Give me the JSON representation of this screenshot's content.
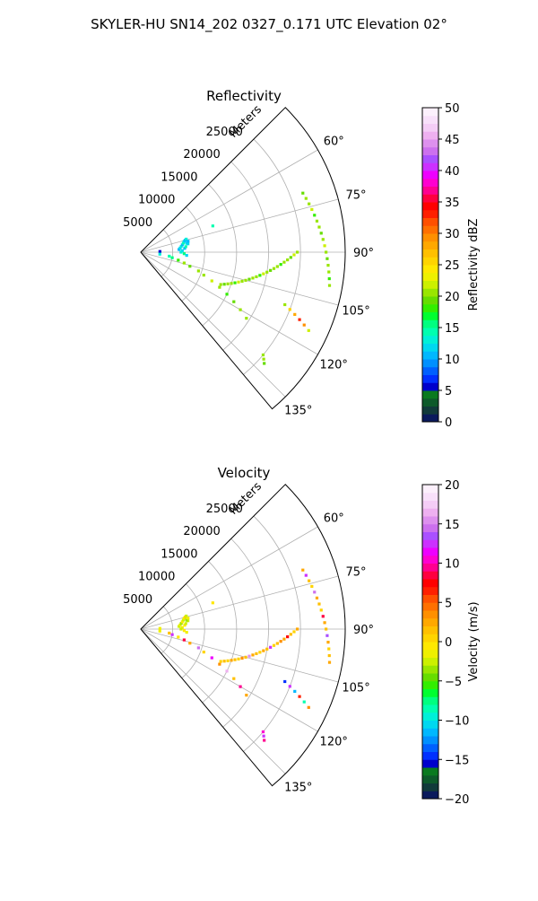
{
  "figure": {
    "title": "SKYLER-HU  SN14_202  0327_0.171 UTC Elevation 02°"
  },
  "chart_data": [
    {
      "type": "scatter",
      "projection": "polar-sector",
      "title": "Reflectivity",
      "radial_label": "Meters",
      "radial_range": [
        0,
        32000
      ],
      "radial_ticks": [
        5000,
        10000,
        15000,
        20000,
        25000
      ],
      "azimuth_range_deg": [
        45,
        140
      ],
      "azimuth_ticks_deg": [
        60,
        75,
        90,
        105,
        120,
        135
      ],
      "azimuth_tick_labels": [
        "60°",
        "75°",
        "90°",
        "105°",
        "120°",
        "135°"
      ],
      "grid": true,
      "colorbar": {
        "label": "Reflectivity dBZ",
        "range": [
          0,
          50
        ],
        "ticks": [
          "0",
          "5",
          "10",
          "15",
          "20",
          "25",
          "30",
          "35",
          "40",
          "45",
          "50"
        ],
        "colors": [
          "#0a1a5c",
          "#113a3a",
          "#0d5a2a",
          "#0a7a20",
          "#0000cc",
          "#0030ff",
          "#0060ff",
          "#0090ff",
          "#00b8ff",
          "#00d8f0",
          "#00f0d8",
          "#00ffb0",
          "#00ff80",
          "#00ff30",
          "#33ee00",
          "#66dd00",
          "#99e600",
          "#ccf000",
          "#eef000",
          "#ffe800",
          "#ffd400",
          "#ffc000",
          "#ffa800",
          "#ff9000",
          "#ff7000",
          "#ff5000",
          "#ff2000",
          "#ff0000",
          "#ff0040",
          "#ff0090",
          "#ff00d0",
          "#ee00ff",
          "#cc30ff",
          "#aa50ff",
          "#cc70ee",
          "#dd90ee",
          "#eeb0f0",
          "#f4cdf6",
          "#f8e0fa",
          "#fcf0fc"
        ]
      },
      "series": [
        {
          "az": [
            88,
            80,
            70
          ],
          "range": [
            3000,
            7500,
            12000
          ],
          "value": [
            6,
            12,
            14
          ]
        },
        {
          "az": [
            86,
            84,
            82,
            80,
            78,
            76,
            75,
            74,
            88,
            85,
            83,
            79,
            77,
            90,
            92,
            94
          ],
          "range": [
            6000,
            6200,
            6400,
            6600,
            6800,
            7000,
            7200,
            7400,
            6500,
            6900,
            7100,
            7300,
            7600,
            6300,
            6800,
            7200
          ],
          "value": [
            11,
            12,
            13,
            10,
            14,
            12,
            11,
            13,
            12,
            10,
            14,
            12,
            11,
            13,
            15,
            12
          ]
        },
        {
          "az": [
            96,
            98,
            100,
            102,
            104,
            106,
            108,
            110,
            112,
            114,
            116,
            118,
            120,
            122
          ],
          "range": [
            3000,
            4500,
            5000,
            6000,
            7000,
            8000,
            9500,
            10500,
            12000,
            13500,
            15000,
            16500,
            18000,
            19500
          ],
          "value": [
            13,
            14,
            16,
            18,
            20,
            19,
            21,
            20,
            22,
            20,
            18,
            19,
            21,
            20
          ]
        },
        {
          "az": [
            112,
            111,
            110,
            109,
            108,
            107,
            106,
            105,
            104,
            103,
            102,
            101,
            100,
            99,
            98,
            97,
            96,
            95,
            94,
            93,
            92,
            91,
            90
          ],
          "range": [
            13500,
            14000,
            14500,
            15000,
            15500,
            16000,
            16500,
            17000,
            17500,
            18000,
            18500,
            19000,
            19500,
            20000,
            20500,
            21000,
            21500,
            22000,
            22500,
            23000,
            23500,
            24000,
            24500
          ],
          "value": [
            20,
            19,
            21,
            20,
            18,
            22,
            21,
            20,
            19,
            21,
            20,
            18,
            22,
            20,
            19,
            21,
            20,
            18,
            21,
            20,
            19,
            22,
            20
          ]
        },
        {
          "az": [
            110,
            111,
            112,
            113,
            114,
            115
          ],
          "range": [
            24000,
            25000,
            26000,
            27000,
            28000,
            29000
          ],
          "value": [
            20,
            25,
            28,
            33,
            29,
            22
          ]
        },
        {
          "az": [
            70,
            72,
            74,
            76,
            78,
            80,
            82,
            84,
            86,
            88,
            90,
            92,
            94,
            96,
            98,
            100
          ],
          "range": [
            27000,
            27200,
            27400,
            27600,
            27800,
            28000,
            28200,
            28400,
            28600,
            28800,
            29000,
            29200,
            29400,
            29600,
            29800,
            30000
          ],
          "value": [
            19,
            21,
            20,
            22,
            18,
            20,
            21,
            19,
            20,
            22,
            20,
            19,
            21,
            20,
            18,
            21
          ]
        },
        {
          "az": [
            130,
            131,
            132
          ],
          "range": [
            25000,
            25500,
            26000
          ],
          "value": [
            20,
            21,
            19
          ]
        }
      ]
    },
    {
      "type": "scatter",
      "projection": "polar-sector",
      "title": "Velocity",
      "radial_label": "Meters",
      "radial_range": [
        0,
        32000
      ],
      "radial_ticks": [
        5000,
        10000,
        15000,
        20000,
        25000
      ],
      "azimuth_range_deg": [
        45,
        140
      ],
      "azimuth_ticks_deg": [
        60,
        75,
        90,
        105,
        120,
        135
      ],
      "azimuth_tick_labels": [
        "60°",
        "75°",
        "90°",
        "105°",
        "120°",
        "135°"
      ],
      "grid": true,
      "colorbar": {
        "label": "Velocity (m/s)",
        "range": [
          -20,
          20
        ],
        "ticks": [
          "−20",
          "−15",
          "−10",
          "−5",
          "0",
          "5",
          "10",
          "15",
          "20"
        ],
        "colors": [
          "#0a1a5c",
          "#113a3a",
          "#0d5a2a",
          "#0a7a20",
          "#0000cc",
          "#0030ff",
          "#0060ff",
          "#0090ff",
          "#00b8ff",
          "#00d8f0",
          "#00f0d8",
          "#00ffb0",
          "#00ff80",
          "#00ff30",
          "#33ee00",
          "#66dd00",
          "#99e600",
          "#ccf000",
          "#eef000",
          "#ffe800",
          "#ffd400",
          "#ffc000",
          "#ffa800",
          "#ff9000",
          "#ff7000",
          "#ff5000",
          "#ff2000",
          "#ff0000",
          "#ff0040",
          "#ff0090",
          "#ff00d0",
          "#ee00ff",
          "#cc30ff",
          "#aa50ff",
          "#cc70ee",
          "#dd90ee",
          "#eeb0f0",
          "#f4cdf6",
          "#f8e0fa",
          "#fcf0fc"
        ]
      },
      "series": [
        {
          "az": [
            88,
            80,
            70
          ],
          "range": [
            3000,
            7500,
            12000
          ],
          "value": [
            -2,
            -3,
            -1
          ]
        },
        {
          "az": [
            86,
            84,
            82,
            80,
            78,
            76,
            75,
            74,
            88,
            85,
            83,
            79,
            77,
            90,
            92,
            94
          ],
          "range": [
            6000,
            6200,
            6400,
            6600,
            6800,
            7000,
            7200,
            7400,
            6500,
            6900,
            7100,
            7300,
            7600,
            6300,
            6800,
            7200
          ],
          "value": [
            -3,
            -2,
            -4,
            -1,
            -3,
            -2,
            0,
            -3,
            -2,
            -1,
            -3,
            -4,
            -2,
            -3,
            -1,
            -2
          ]
        },
        {
          "az": [
            96,
            98,
            100,
            102,
            104,
            106,
            108,
            110,
            112,
            114,
            116,
            118,
            120,
            122
          ],
          "range": [
            3000,
            4500,
            5000,
            6000,
            7000,
            8000,
            9500,
            10500,
            12000,
            13500,
            15000,
            16500,
            18000,
            19500
          ],
          "value": [
            -2,
            1,
            12,
            -1,
            8,
            2,
            14,
            0,
            11,
            3,
            16,
            1,
            9,
            2
          ]
        },
        {
          "az": [
            112,
            111,
            110,
            109,
            108,
            107,
            106,
            105,
            104,
            103,
            102,
            101,
            100,
            99,
            98,
            97,
            96,
            95,
            94,
            93,
            92,
            91,
            90
          ],
          "range": [
            13500,
            14000,
            14500,
            15000,
            15500,
            16000,
            16500,
            17000,
            17500,
            18000,
            18500,
            19000,
            19500,
            20000,
            20500,
            21000,
            21500,
            22000,
            22500,
            23000,
            23500,
            24000,
            24500
          ],
          "value": [
            0,
            1,
            0,
            2,
            1,
            0,
            3,
            1,
            15,
            2,
            1,
            0,
            2,
            1,
            12,
            0,
            1,
            3,
            2,
            7,
            1,
            0,
            2
          ]
        },
        {
          "az": [
            110,
            111,
            112,
            113,
            114,
            115
          ],
          "range": [
            24000,
            25000,
            26000,
            27000,
            28000,
            29000
          ],
          "value": [
            -15,
            12,
            -12,
            6,
            -9,
            3
          ]
        },
        {
          "az": [
            70,
            72,
            74,
            76,
            78,
            80,
            82,
            84,
            86,
            88,
            90,
            92,
            94,
            96,
            98,
            100
          ],
          "range": [
            27000,
            27200,
            27400,
            27600,
            27800,
            28000,
            28200,
            28400,
            28600,
            28800,
            29000,
            29200,
            29400,
            29600,
            29800,
            30000
          ],
          "value": [
            2,
            12,
            1,
            0,
            14,
            2,
            1,
            0,
            8,
            2,
            1,
            13,
            2,
            0,
            1,
            2
          ]
        },
        {
          "az": [
            130,
            131,
            132
          ],
          "range": [
            25000,
            25500,
            26000
          ],
          "value": [
            10,
            12,
            9
          ]
        }
      ]
    }
  ]
}
